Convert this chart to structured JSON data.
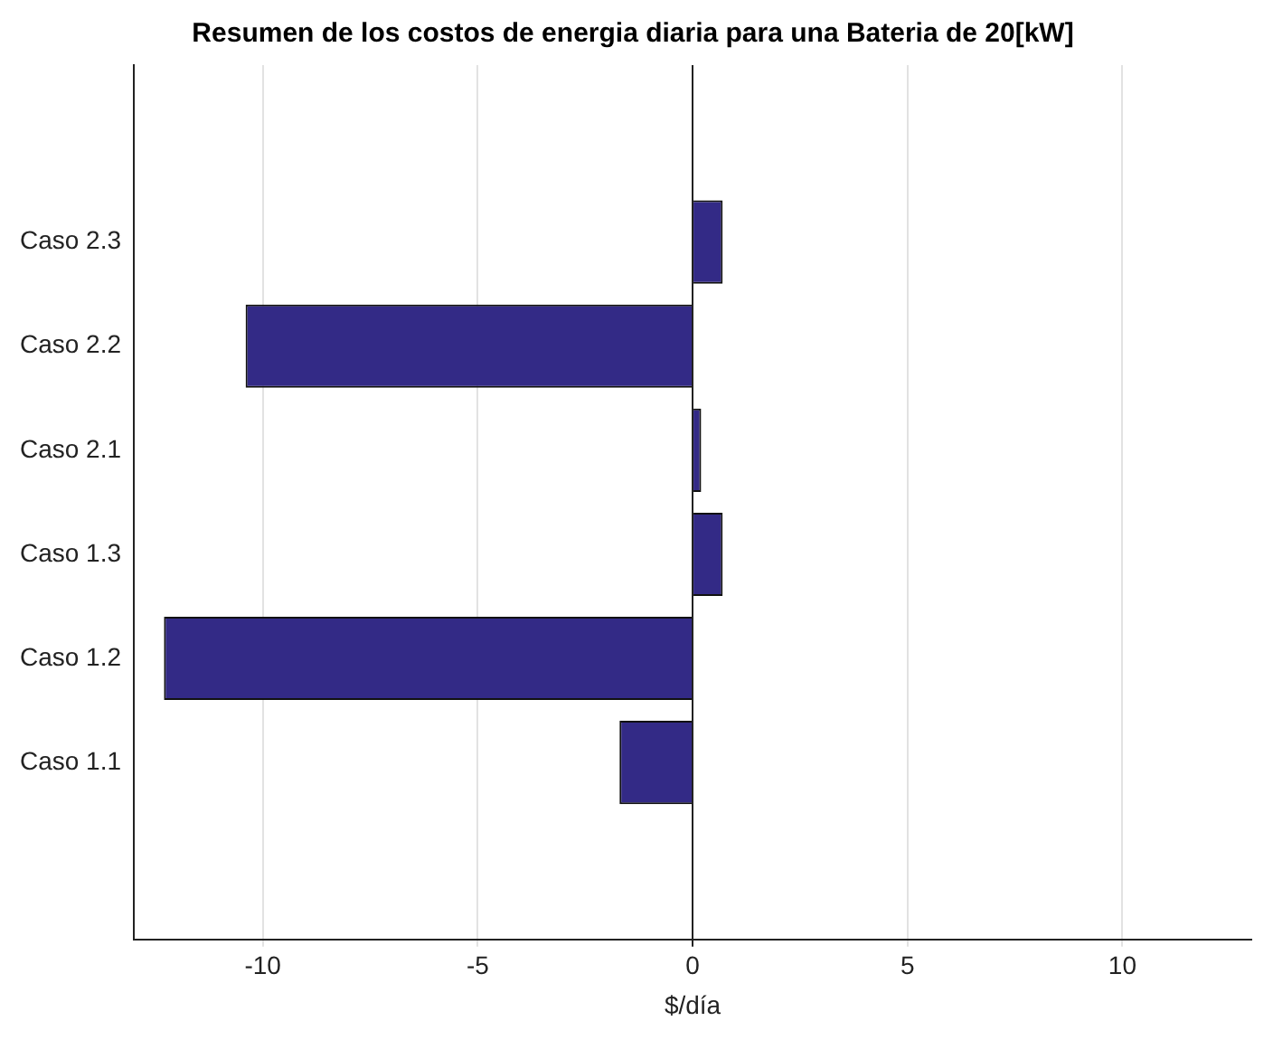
{
  "chart_data": {
    "type": "bar",
    "orientation": "horizontal",
    "title": "Resumen de los costos de energia diaria para una Bateria de 20[kW]",
    "xlabel": "$/día",
    "categories": [
      "Caso 2.3",
      "Caso 2.2",
      "Caso 2.1",
      "Caso 1.3",
      "Caso 1.2",
      "Caso 1.1"
    ],
    "values": [
      0.7,
      -10.4,
      0.2,
      0.7,
      -12.3,
      -1.7
    ],
    "color": "#332a86",
    "xlim": [
      -13,
      13
    ],
    "xticks": [
      -10,
      -5,
      0,
      5,
      10
    ],
    "grid": "x",
    "legend": false
  }
}
